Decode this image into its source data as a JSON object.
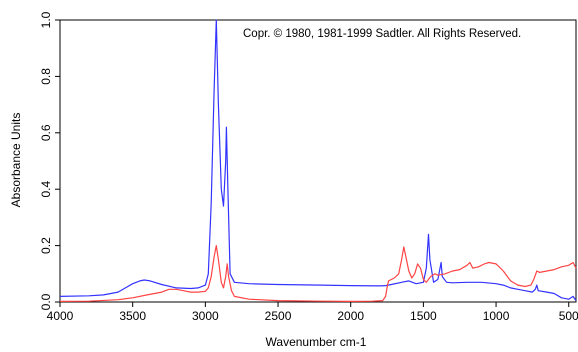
{
  "chart_data": {
    "type": "line",
    "xlabel": "Wavenumber cm-1",
    "ylabel": "Absorbance Units",
    "annotation": "Copr. © 1980, 1981-1999 Sadtler.  All Rights Reserved.",
    "xlim": [
      4000,
      450
    ],
    "ylim": [
      0,
      1.0
    ],
    "x_reversed": true,
    "grid": false,
    "x_ticks": [
      {
        "value": 4000,
        "label": "4000"
      },
      {
        "value": 3500,
        "label": "3500"
      },
      {
        "value": 3000,
        "label": "3000"
      },
      {
        "value": 2500,
        "label": "2500"
      },
      {
        "value": 2000,
        "label": "2000"
      },
      {
        "value": 1500,
        "label": "1500"
      },
      {
        "value": 1000,
        "label": "1000"
      },
      {
        "value": 500,
        "label": "500"
      }
    ],
    "y_ticks": [
      {
        "value": 0.0,
        "label": "0.0"
      },
      {
        "value": 0.2,
        "label": "0.2"
      },
      {
        "value": 0.4,
        "label": "0.4"
      },
      {
        "value": 0.6,
        "label": "0.6"
      },
      {
        "value": 0.8,
        "label": "0.8"
      },
      {
        "value": 1.0,
        "label": "1.0"
      }
    ],
    "series": [
      {
        "color": "#3333ff",
        "points": [
          [
            4000,
            0.02
          ],
          [
            3800,
            0.022
          ],
          [
            3700,
            0.025
          ],
          [
            3600,
            0.035
          ],
          [
            3550,
            0.05
          ],
          [
            3500,
            0.065
          ],
          [
            3450,
            0.075
          ],
          [
            3420,
            0.078
          ],
          [
            3380,
            0.075
          ],
          [
            3300,
            0.062
          ],
          [
            3200,
            0.05
          ],
          [
            3100,
            0.048
          ],
          [
            3050,
            0.05
          ],
          [
            3000,
            0.06
          ],
          [
            2980,
            0.1
          ],
          [
            2960,
            0.35
          ],
          [
            2940,
            0.75
          ],
          [
            2925,
            1.0
          ],
          [
            2910,
            0.7
          ],
          [
            2890,
            0.4
          ],
          [
            2875,
            0.34
          ],
          [
            2860,
            0.5
          ],
          [
            2855,
            0.62
          ],
          [
            2845,
            0.4
          ],
          [
            2830,
            0.1
          ],
          [
            2800,
            0.07
          ],
          [
            2700,
            0.065
          ],
          [
            2500,
            0.062
          ],
          [
            2200,
            0.06
          ],
          [
            2000,
            0.058
          ],
          [
            1800,
            0.057
          ],
          [
            1760,
            0.058
          ],
          [
            1720,
            0.062
          ],
          [
            1650,
            0.07
          ],
          [
            1600,
            0.075
          ],
          [
            1550,
            0.065
          ],
          [
            1500,
            0.07
          ],
          [
            1480,
            0.12
          ],
          [
            1465,
            0.24
          ],
          [
            1455,
            0.15
          ],
          [
            1430,
            0.07
          ],
          [
            1400,
            0.08
          ],
          [
            1378,
            0.14
          ],
          [
            1370,
            0.09
          ],
          [
            1340,
            0.07
          ],
          [
            1300,
            0.068
          ],
          [
            1200,
            0.07
          ],
          [
            1100,
            0.07
          ],
          [
            1000,
            0.065
          ],
          [
            950,
            0.06
          ],
          [
            900,
            0.05
          ],
          [
            850,
            0.045
          ],
          [
            800,
            0.04
          ],
          [
            750,
            0.035
          ],
          [
            730,
            0.045
          ],
          [
            720,
            0.06
          ],
          [
            710,
            0.04
          ],
          [
            650,
            0.035
          ],
          [
            600,
            0.03
          ],
          [
            550,
            0.015
          ],
          [
            500,
            0.01
          ],
          [
            470,
            0.02
          ],
          [
            450,
            0.005
          ]
        ]
      },
      {
        "color": "#ff4444",
        "points": [
          [
            4000,
            0.002
          ],
          [
            3800,
            0.003
          ],
          [
            3600,
            0.008
          ],
          [
            3500,
            0.015
          ],
          [
            3400,
            0.025
          ],
          [
            3300,
            0.035
          ],
          [
            3250,
            0.045
          ],
          [
            3200,
            0.045
          ],
          [
            3150,
            0.04
          ],
          [
            3100,
            0.035
          ],
          [
            3050,
            0.035
          ],
          [
            3000,
            0.038
          ],
          [
            2980,
            0.05
          ],
          [
            2960,
            0.09
          ],
          [
            2940,
            0.16
          ],
          [
            2925,
            0.2
          ],
          [
            2910,
            0.15
          ],
          [
            2890,
            0.07
          ],
          [
            2875,
            0.05
          ],
          [
            2860,
            0.09
          ],
          [
            2850,
            0.135
          ],
          [
            2840,
            0.09
          ],
          [
            2820,
            0.04
          ],
          [
            2800,
            0.02
          ],
          [
            2700,
            0.01
          ],
          [
            2500,
            0.005
          ],
          [
            2200,
            0.003
          ],
          [
            2000,
            0.002
          ],
          [
            1850,
            0.003
          ],
          [
            1780,
            0.005
          ],
          [
            1760,
            0.02
          ],
          [
            1750,
            0.05
          ],
          [
            1740,
            0.075
          ],
          [
            1700,
            0.085
          ],
          [
            1670,
            0.1
          ],
          [
            1650,
            0.15
          ],
          [
            1635,
            0.195
          ],
          [
            1620,
            0.16
          ],
          [
            1600,
            0.11
          ],
          [
            1580,
            0.085
          ],
          [
            1560,
            0.1
          ],
          [
            1540,
            0.135
          ],
          [
            1520,
            0.12
          ],
          [
            1500,
            0.08
          ],
          [
            1480,
            0.07
          ],
          [
            1450,
            0.09
          ],
          [
            1420,
            0.1
          ],
          [
            1400,
            0.095
          ],
          [
            1350,
            0.1
          ],
          [
            1300,
            0.11
          ],
          [
            1250,
            0.115
          ],
          [
            1200,
            0.13
          ],
          [
            1180,
            0.14
          ],
          [
            1160,
            0.12
          ],
          [
            1120,
            0.125
          ],
          [
            1080,
            0.135
          ],
          [
            1050,
            0.14
          ],
          [
            1000,
            0.135
          ],
          [
            950,
            0.11
          ],
          [
            900,
            0.075
          ],
          [
            850,
            0.06
          ],
          [
            800,
            0.055
          ],
          [
            760,
            0.06
          ],
          [
            740,
            0.08
          ],
          [
            720,
            0.11
          ],
          [
            700,
            0.105
          ],
          [
            650,
            0.11
          ],
          [
            600,
            0.115
          ],
          [
            550,
            0.125
          ],
          [
            500,
            0.13
          ],
          [
            470,
            0.14
          ],
          [
            450,
            0.12
          ]
        ]
      }
    ]
  }
}
